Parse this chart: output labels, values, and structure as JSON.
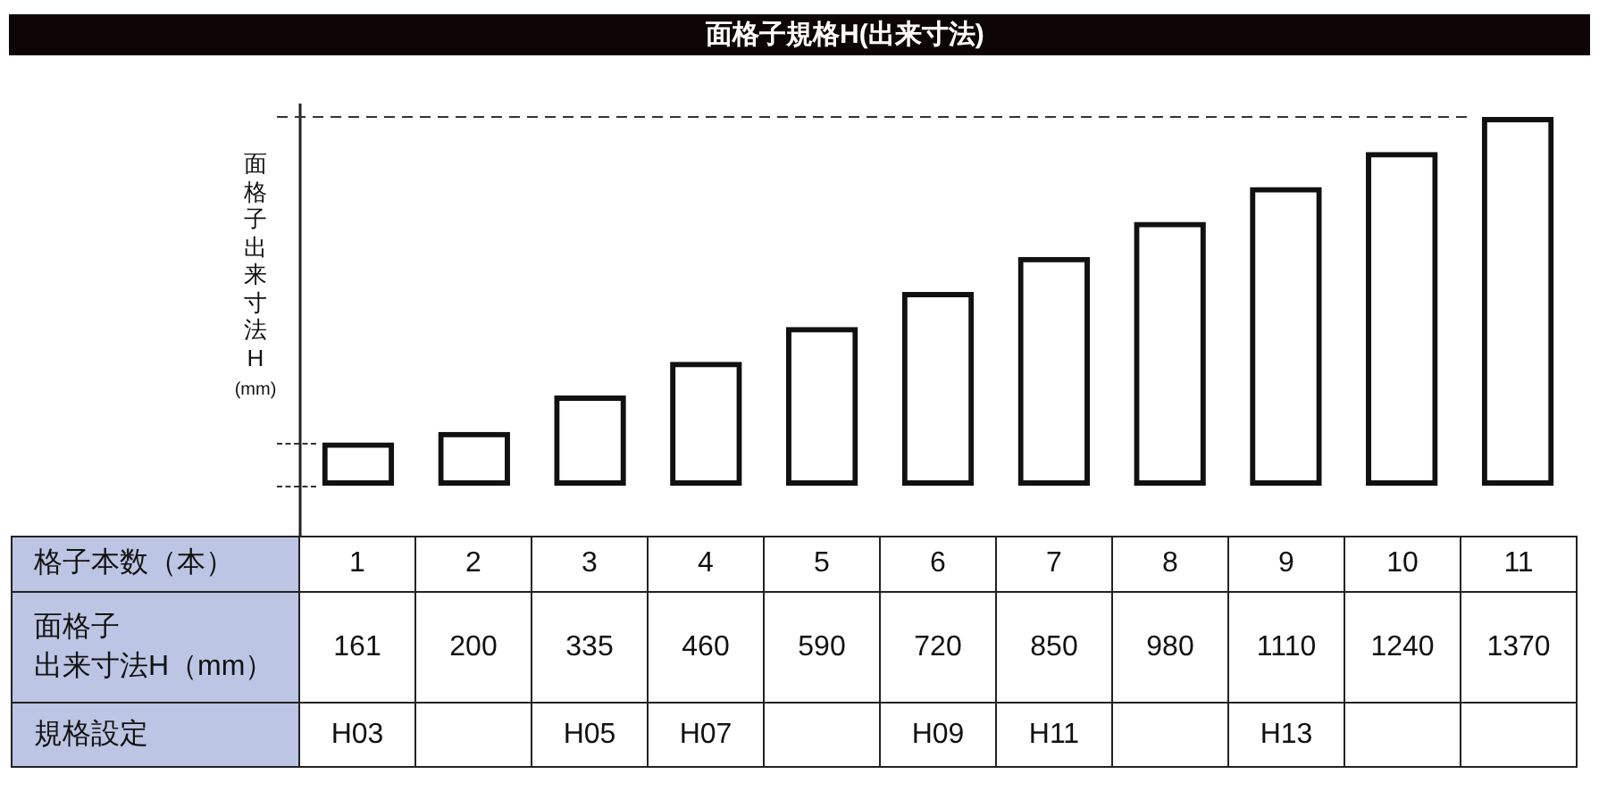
{
  "chart_data": {
    "type": "bar",
    "title": "面格子規格H(出来寸法)",
    "ylabel": "面格子出来寸法H\n(mm)",
    "xlabel": "格子本数（本）",
    "categories": [
      "1",
      "2",
      "3",
      "4",
      "5",
      "6",
      "7",
      "8",
      "9",
      "10",
      "11"
    ],
    "values": [
      161,
      200,
      335,
      460,
      590,
      720,
      850,
      980,
      1110,
      1240,
      1370
    ],
    "color": "#111111",
    "ylim": [
      0,
      1420
    ],
    "tick_labels": "x",
    "data_labels": true,
    "ref_lines": [
      {
        "axis": "y",
        "value": 1370,
        "line_style": "dashed"
      }
    ],
    "annotations": [
      "面格子出来寸法H（mm）",
      "規格設定",
      "H03",
      null,
      "H05",
      "H07",
      null,
      "H09",
      "H11",
      null,
      "H13",
      null,
      null
    ]
  }
}
